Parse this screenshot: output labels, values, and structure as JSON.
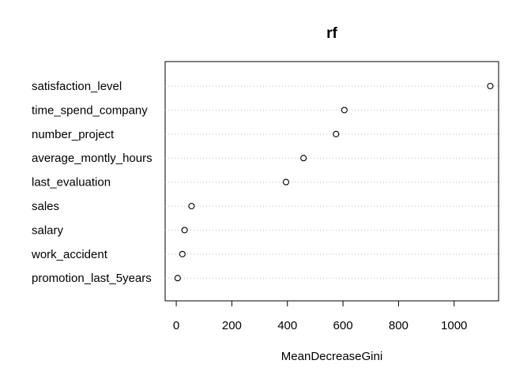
{
  "chart_data": {
    "type": "scatter",
    "title": "rf",
    "xlabel": "MeanDecreaseGini",
    "ylabel": "",
    "xlim": [
      -40,
      1160
    ],
    "xticks": [
      0,
      200,
      400,
      600,
      800,
      1000
    ],
    "grid": "dotted horizontal guide per variable",
    "categories": [
      "satisfaction_level",
      "time_spend_company",
      "number_project",
      "average_montly_hours",
      "last_evaluation",
      "sales",
      "salary",
      "work_accident",
      "promotion_last_5years"
    ],
    "values": [
      1130,
      605,
      575,
      458,
      395,
      55,
      30,
      22,
      5
    ]
  }
}
